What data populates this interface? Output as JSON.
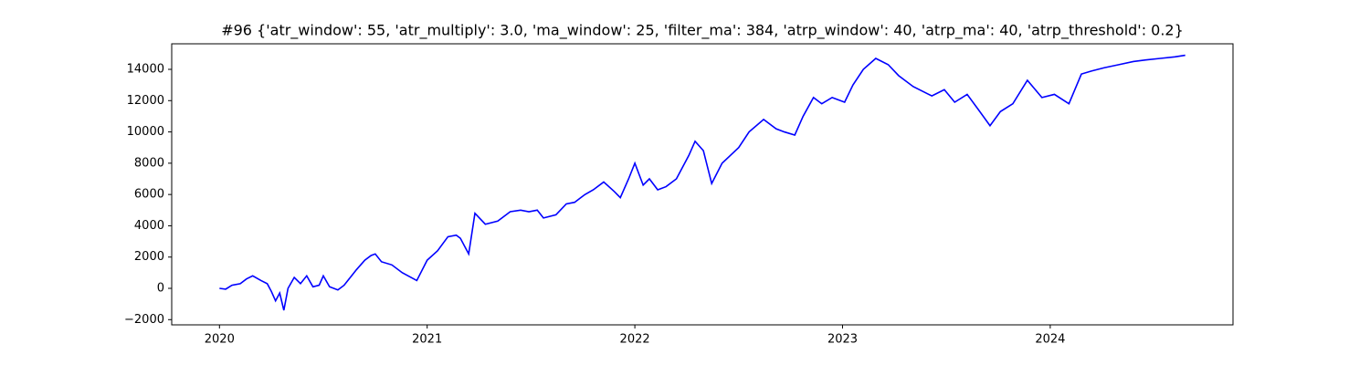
{
  "chart_data": {
    "type": "line",
    "title": "#96 {'atr_window': 55, 'atr_multiply': 3.0, 'ma_window': 25, 'filter_ma': 384, 'atrp_window': 40, 'atrp_ma': 40, 'atrp_threshold': 0.2}",
    "x": [
      2020.0,
      2020.03,
      2020.06,
      2020.1,
      2020.13,
      2020.16,
      2020.2,
      2020.23,
      2020.25,
      2020.27,
      2020.29,
      2020.31,
      2020.33,
      2020.36,
      2020.39,
      2020.42,
      2020.45,
      2020.48,
      2020.5,
      2020.53,
      2020.57,
      2020.6,
      2020.63,
      2020.66,
      2020.7,
      2020.73,
      2020.75,
      2020.78,
      2020.83,
      2020.88,
      2020.95,
      2021.0,
      2021.05,
      2021.1,
      2021.14,
      2021.16,
      2021.2,
      2021.23,
      2021.28,
      2021.34,
      2021.4,
      2021.45,
      2021.49,
      2021.53,
      2021.56,
      2021.62,
      2021.67,
      2021.71,
      2021.76,
      2021.8,
      2021.85,
      2021.9,
      2021.93,
      2021.97,
      2022.0,
      2022.04,
      2022.07,
      2022.11,
      2022.15,
      2022.2,
      2022.26,
      2022.29,
      2022.33,
      2022.37,
      2022.42,
      2022.46,
      2022.5,
      2022.55,
      2022.62,
      2022.68,
      2022.72,
      2022.77,
      2022.81,
      2022.86,
      2022.9,
      2022.95,
      2023.01,
      2023.05,
      2023.1,
      2023.16,
      2023.22,
      2023.27,
      2023.34,
      2023.43,
      2023.49,
      2023.54,
      2023.6,
      2023.65,
      2023.71,
      2023.76,
      2023.82,
      2023.89,
      2023.96,
      2024.02,
      2024.09,
      2024.15,
      2024.2,
      2024.26,
      2024.33,
      2024.4,
      2024.46,
      2024.53,
      2024.6,
      2024.65
    ],
    "series": [
      {
        "color": "#0000ff",
        "values": [
          0,
          -50,
          200,
          300,
          600,
          800,
          500,
          300,
          -200,
          -800,
          -300,
          -1400,
          0,
          700,
          300,
          800,
          100,
          200,
          800,
          100,
          -100,
          200,
          700,
          1200,
          1800,
          2100,
          2200,
          1700,
          1500,
          1000,
          500,
          1800,
          2400,
          3300,
          3400,
          3200,
          2200,
          4800,
          4100,
          4300,
          4900,
          5000,
          4900,
          5000,
          4500,
          4700,
          5400,
          5500,
          6000,
          6300,
          6800,
          6200,
          5800,
          7000,
          8000,
          6600,
          7000,
          6300,
          6500,
          7000,
          8500,
          9400,
          8800,
          6700,
          8000,
          8500,
          9000,
          10000,
          10800,
          10200,
          10000,
          9800,
          11000,
          12200,
          11800,
          12200,
          11900,
          13000,
          14000,
          14700,
          14300,
          13600,
          12900,
          12300,
          12700,
          11900,
          12400,
          11500,
          10400,
          11300,
          11800,
          13300,
          12200,
          12400,
          11800,
          13700,
          13900,
          14100,
          14300,
          14500,
          14600,
          14700,
          14800,
          14900
        ]
      }
    ],
    "xlim": [
      2019.77,
      2024.88
    ],
    "xticks": [
      2020,
      2021,
      2022,
      2023,
      2024
    ],
    "ylim": [
      -2333,
      15633
    ],
    "yticks": [
      {
        "value": -2000,
        "label": "−2000"
      },
      0,
      2000,
      4000,
      6000,
      8000,
      10000,
      12000,
      14000
    ],
    "grid": false
  }
}
